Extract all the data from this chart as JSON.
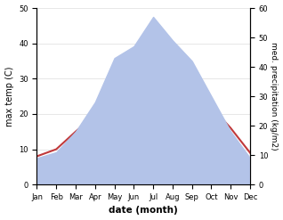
{
  "months": [
    "Jan",
    "Feb",
    "Mar",
    "Apr",
    "May",
    "Jun",
    "Jul",
    "Aug",
    "Sep",
    "Oct",
    "Nov",
    "Dec"
  ],
  "temperature": [
    8,
    10,
    15,
    20,
    25,
    28,
    32,
    33,
    27,
    22,
    16,
    9
  ],
  "precipitation": [
    9,
    11,
    18,
    28,
    43,
    47,
    57,
    49,
    42,
    30,
    18,
    9
  ],
  "temp_color": "#c0393b",
  "precip_color": "#b3c3e8",
  "ylabel_left": "max temp (C)",
  "ylabel_right": "med. precipitation (kg/m2)",
  "xlabel": "date (month)",
  "ylim_left": [
    0,
    50
  ],
  "ylim_right": [
    0,
    60
  ],
  "yticks_left": [
    0,
    10,
    20,
    30,
    40,
    50
  ],
  "yticks_right": [
    0,
    10,
    20,
    30,
    40,
    50,
    60
  ],
  "grid_color": "#dddddd"
}
